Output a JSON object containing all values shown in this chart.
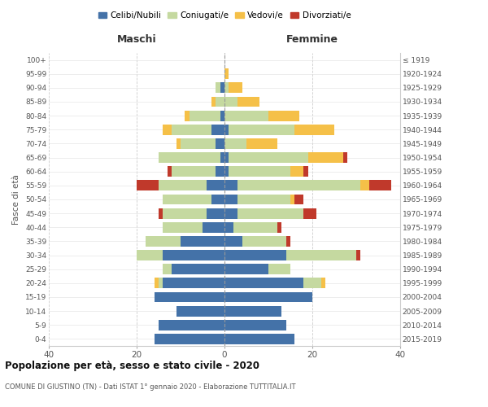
{
  "age_groups": [
    "0-4",
    "5-9",
    "10-14",
    "15-19",
    "20-24",
    "25-29",
    "30-34",
    "35-39",
    "40-44",
    "45-49",
    "50-54",
    "55-59",
    "60-64",
    "65-69",
    "70-74",
    "75-79",
    "80-84",
    "85-89",
    "90-94",
    "95-99",
    "100+"
  ],
  "birth_years": [
    "2015-2019",
    "2010-2014",
    "2005-2009",
    "2000-2004",
    "1995-1999",
    "1990-1994",
    "1985-1989",
    "1980-1984",
    "1975-1979",
    "1970-1974",
    "1965-1969",
    "1960-1964",
    "1955-1959",
    "1950-1954",
    "1945-1949",
    "1940-1944",
    "1935-1939",
    "1930-1934",
    "1925-1929",
    "1920-1924",
    "≤ 1919"
  ],
  "males": {
    "celibe": [
      16,
      15,
      11,
      16,
      14,
      12,
      14,
      10,
      5,
      4,
      3,
      4,
      2,
      1,
      2,
      3,
      1,
      0,
      1,
      0,
      0
    ],
    "coniugato": [
      0,
      0,
      0,
      0,
      1,
      2,
      6,
      8,
      9,
      10,
      11,
      11,
      10,
      14,
      8,
      9,
      7,
      2,
      1,
      0,
      0
    ],
    "vedovo": [
      0,
      0,
      0,
      0,
      1,
      0,
      0,
      0,
      0,
      0,
      0,
      0,
      0,
      0,
      1,
      2,
      1,
      1,
      0,
      0,
      0
    ],
    "divorziato": [
      0,
      0,
      0,
      0,
      0,
      0,
      0,
      0,
      0,
      1,
      0,
      5,
      1,
      0,
      0,
      0,
      0,
      0,
      0,
      0,
      0
    ]
  },
  "females": {
    "nubile": [
      16,
      14,
      13,
      20,
      18,
      10,
      14,
      4,
      2,
      3,
      3,
      3,
      1,
      1,
      0,
      1,
      0,
      0,
      0,
      0,
      0
    ],
    "coniugata": [
      0,
      0,
      0,
      0,
      4,
      5,
      16,
      10,
      10,
      15,
      12,
      28,
      14,
      18,
      5,
      15,
      10,
      3,
      1,
      0,
      0
    ],
    "vedova": [
      0,
      0,
      0,
      0,
      1,
      0,
      0,
      0,
      0,
      0,
      1,
      2,
      3,
      8,
      7,
      9,
      7,
      5,
      3,
      1,
      0
    ],
    "divorziata": [
      0,
      0,
      0,
      0,
      0,
      0,
      1,
      1,
      1,
      3,
      2,
      5,
      1,
      1,
      0,
      0,
      0,
      0,
      0,
      0,
      0
    ]
  },
  "colors": {
    "celibe": "#4472a8",
    "coniugato": "#c5d9a0",
    "vedovo": "#f5c048",
    "divorziato": "#c0392b"
  },
  "title": "Popolazione per età, sesso e stato civile - 2020",
  "subtitle": "COMUNE DI GIUSTINO (TN) - Dati ISTAT 1° gennaio 2020 - Elaborazione TUTTITALIA.IT",
  "xlabel_left": "Maschi",
  "xlabel_right": "Femmine",
  "ylabel_left": "Fasce di età",
  "xlim": 40,
  "legend_labels": [
    "Celibi/Nubili",
    "Coniugati/e",
    "Vedovi/e",
    "Divorziati/e"
  ],
  "background_color": "#ffffff",
  "bar_height": 0.75
}
